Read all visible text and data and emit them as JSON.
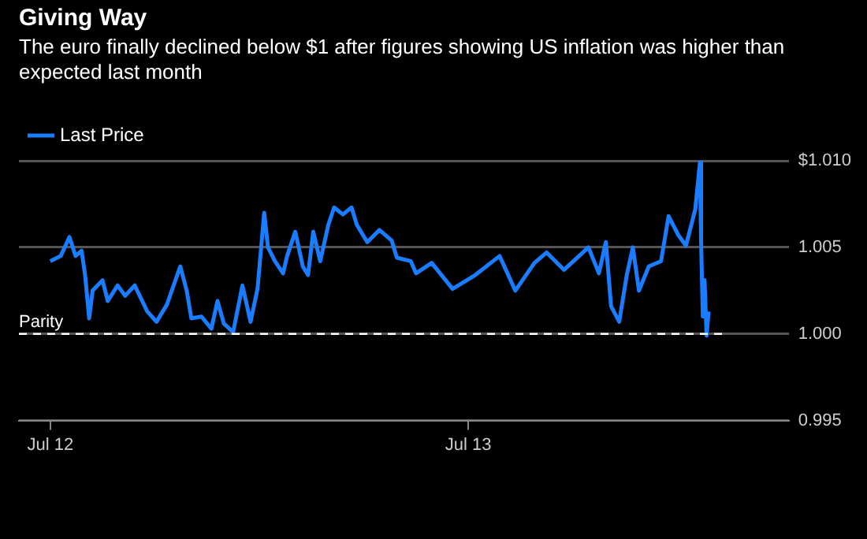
{
  "chart_data": {
    "type": "line",
    "title": "Giving Way",
    "subtitle": "The euro finally declined below $1 after figures showing US inflation was higher than expected last month",
    "x": [
      "--07-12T00:00",
      "--07-12T00:36",
      "--07-12T01:06",
      "--07-12T01:27",
      "--07-12T01:48",
      "--07-12T02:00",
      "--07-12T02:14",
      "--07-12T02:26",
      "--07-12T03:00",
      "--07-12T03:18",
      "--07-12T03:52",
      "--07-12T04:18",
      "--07-12T04:51",
      "--07-12T05:34",
      "--07-12T06:06",
      "--07-12T06:42",
      "--07-12T07:28",
      "--07-12T07:50",
      "--07-12T08:06",
      "--07-12T08:41",
      "--07-12T09:15",
      "--07-12T09:36",
      "--07-12T09:58",
      "--07-12T10:30",
      "--07-12T11:02",
      "--07-12T11:30",
      "--07-12T11:54",
      "--07-12T12:17",
      "--07-12T12:30",
      "--07-12T12:54",
      "--07-12T13:22",
      "--07-12T13:36",
      "--07-12T14:04",
      "--07-12T14:30",
      "--07-12T14:48",
      "--07-12T15:06",
      "--07-12T15:30",
      "--07-12T15:58",
      "--07-12T16:18",
      "--07-12T16:48",
      "--07-12T17:18",
      "--07-12T17:36",
      "--07-12T18:12",
      "--07-12T18:54",
      "--07-12T19:36",
      "--07-12T19:54",
      "--07-12T20:42",
      "--07-12T21:00",
      "--07-12T21:54",
      "--07-12T23:06",
      "--07-13T00:24",
      "--07-13T01:48",
      "--07-13T02:42",
      "--07-13T03:48",
      "--07-13T04:30",
      "--07-13T05:30",
      "--07-13T06:54",
      "--07-13T07:30",
      "--07-13T07:54",
      "--07-13T08:12",
      "--07-13T08:40",
      "--07-13T09:06",
      "--07-13T09:27",
      "--07-13T09:48",
      "--07-13T10:22",
      "--07-13T11:04",
      "--07-13T11:30",
      "--07-13T12:04",
      "--07-13T12:30",
      "--07-13T13:02",
      "--07-13T13:18",
      "--07-13T13:22",
      "--07-13T13:28",
      "--07-13T13:34",
      "--07-13T13:41",
      "--07-13T13:48"
    ],
    "series": [
      {
        "name": "Last Price",
        "color": "#1a7cff",
        "values": [
          1.0042,
          1.0045,
          1.0056,
          1.0045,
          1.0048,
          1.0034,
          1.0009,
          1.0025,
          1.0031,
          1.0019,
          1.0028,
          1.0022,
          1.0028,
          1.0013,
          1.0007,
          1.0017,
          1.0039,
          1.0025,
          1.0009,
          1.001,
          1.0003,
          1.0019,
          1.0006,
          1.0001,
          1.0028,
          1.0007,
          1.0026,
          1.007,
          1.005,
          1.0042,
          1.0035,
          1.0045,
          1.0059,
          1.0039,
          1.0034,
          1.0059,
          1.0042,
          1.0063,
          1.0073,
          1.0069,
          1.0073,
          1.0063,
          1.0053,
          1.006,
          1.0054,
          1.0044,
          1.0042,
          1.0035,
          1.0041,
          1.0026,
          1.0034,
          1.0045,
          1.0025,
          1.0041,
          1.0047,
          1.0037,
          1.005,
          1.0035,
          1.0053,
          1.0016,
          1.0007,
          1.0034,
          1.005,
          1.0025,
          1.0039,
          1.0042,
          1.0068,
          1.0057,
          1.0051,
          1.0072,
          1.0099,
          1.0054,
          1.001,
          1.0031,
          0.9999,
          1.0013
        ]
      }
    ],
    "xlim": [
      "--07-11T22:12",
      "--07-13T18:24"
    ],
    "xticks": [
      {
        "value": "--07-12",
        "label": "Jul 12"
      },
      {
        "value": "--07-13",
        "label": "Jul 13"
      }
    ],
    "ylim": [
      0.995,
      1.01
    ],
    "yticks": [
      {
        "value": 1.01,
        "label": "$1.010"
      },
      {
        "value": 1.005,
        "label": "1.005"
      },
      {
        "value": 1.0,
        "label": "1.000"
      },
      {
        "value": 0.995,
        "label": "0.995"
      }
    ],
    "ref_lines": [
      {
        "axis": "y",
        "value": 1.0,
        "label": "Parity",
        "color": "#ffffff",
        "line_style": "dashed"
      }
    ],
    "grid": "y",
    "legend": "top left",
    "marker": "none",
    "line_style": "solid"
  }
}
